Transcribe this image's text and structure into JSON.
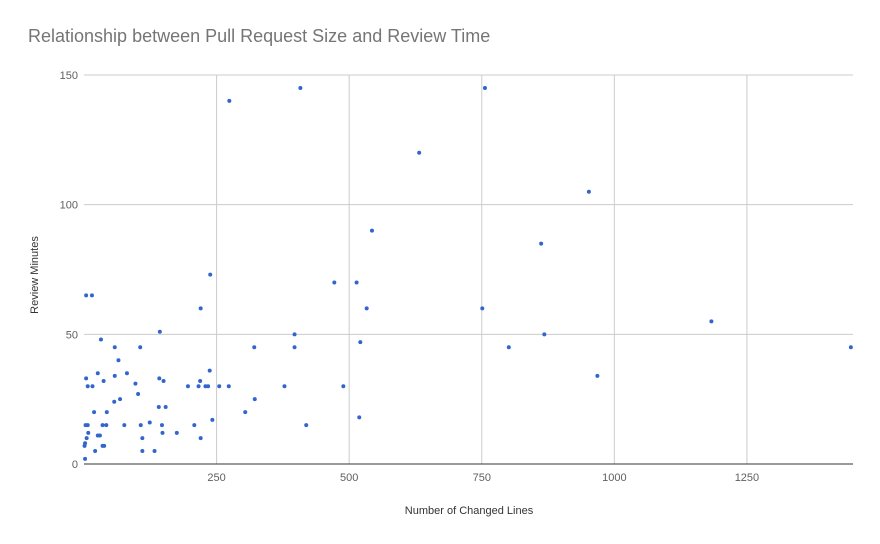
{
  "chart_data": {
    "type": "scatter",
    "title": "Relationship between Pull Request Size and Review Time",
    "xlabel": "Number of Changed Lines",
    "ylabel": "Review Minutes",
    "xlim": [
      0,
      1450
    ],
    "ylim": [
      0,
      150
    ],
    "x_ticks": [
      250,
      500,
      750,
      1000,
      1250
    ],
    "y_ticks": [
      0,
      50,
      100,
      150
    ],
    "grid": true,
    "legend": "none",
    "series": [
      {
        "color": "#3366cc",
        "points": [
          [
            274,
            140
          ],
          [
            408,
            145
          ],
          [
            756,
            145
          ],
          [
            632,
            120
          ],
          [
            952,
            105
          ],
          [
            543,
            90
          ],
          [
            862,
            85
          ],
          [
            238,
            73
          ],
          [
            472,
            70
          ],
          [
            514,
            70
          ],
          [
            533,
            60
          ],
          [
            751,
            60
          ],
          [
            220,
            60
          ],
          [
            1183,
            55
          ],
          [
            4,
            65
          ],
          [
            15,
            65
          ],
          [
            143,
            51
          ],
          [
            397,
            50
          ],
          [
            868,
            50
          ],
          [
            521,
            47
          ],
          [
            1446,
            45
          ],
          [
            801,
            45
          ],
          [
            397,
            45
          ],
          [
            321,
            45
          ],
          [
            106,
            45
          ],
          [
            58,
            45
          ],
          [
            32,
            48
          ],
          [
            65,
            40
          ],
          [
            968,
            34
          ],
          [
            237,
            36
          ],
          [
            81,
            35
          ],
          [
            26,
            35
          ],
          [
            58,
            34
          ],
          [
            4,
            33
          ],
          [
            37,
            32
          ],
          [
            142,
            33
          ],
          [
            150,
            32
          ],
          [
            97,
            31
          ],
          [
            219,
            32
          ],
          [
            7,
            30
          ],
          [
            16,
            30
          ],
          [
            196,
            30
          ],
          [
            216,
            30
          ],
          [
            229,
            30
          ],
          [
            234,
            30
          ],
          [
            255,
            30
          ],
          [
            273,
            30
          ],
          [
            378,
            30
          ],
          [
            489,
            30
          ],
          [
            102,
            27
          ],
          [
            68,
            25
          ],
          [
            57,
            24
          ],
          [
            322,
            25
          ],
          [
            43,
            20
          ],
          [
            19,
            20
          ],
          [
            141,
            22
          ],
          [
            154,
            22
          ],
          [
            304,
            20
          ],
          [
            519,
            18
          ],
          [
            242,
            17
          ],
          [
            124,
            16
          ],
          [
            3,
            15
          ],
          [
            7,
            15
          ],
          [
            35,
            15
          ],
          [
            42,
            15
          ],
          [
            76,
            15
          ],
          [
            107,
            15
          ],
          [
            147,
            15
          ],
          [
            208,
            15
          ],
          [
            419,
            15
          ],
          [
            8,
            12
          ],
          [
            26,
            11
          ],
          [
            30,
            11
          ],
          [
            148,
            12
          ],
          [
            175,
            12
          ],
          [
            110,
            10
          ],
          [
            220,
            10
          ],
          [
            5,
            10
          ],
          [
            35,
            7
          ],
          [
            38,
            7
          ],
          [
            2,
            8
          ],
          [
            1,
            7
          ],
          [
            110,
            5
          ],
          [
            133,
            5
          ],
          [
            21,
            5
          ],
          [
            2,
            2
          ]
        ]
      }
    ]
  }
}
